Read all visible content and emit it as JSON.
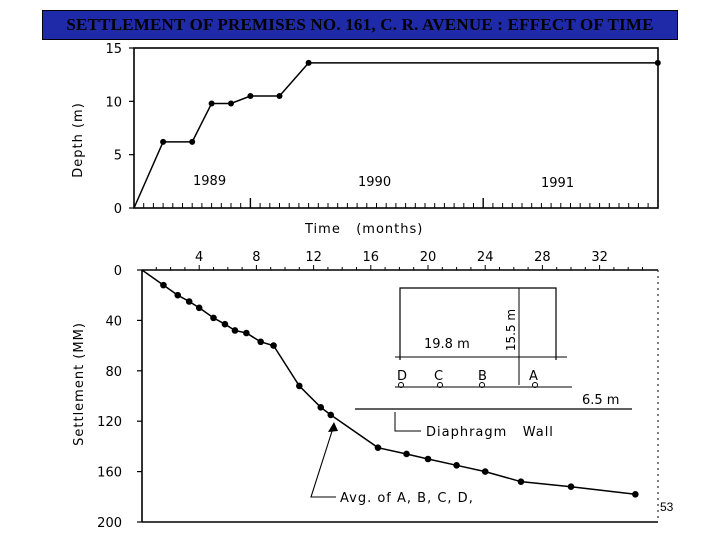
{
  "slide": {
    "title": "SETTLEMENT OF PREMISES NO. 161, C. R. AVENUE : EFFECT OF TIME",
    "page_number": "53",
    "colors": {
      "title_background": "#1f2aa8",
      "ink": "#000000",
      "background": "#ffffff"
    }
  },
  "chart_data": [
    {
      "type": "line",
      "title": "",
      "xlabel": "Time   (months)",
      "ylabel": "Depth (m)",
      "ylim": [
        0,
        15
      ],
      "yticks": [
        "0",
        "5",
        "10",
        "15"
      ],
      "year_labels": [
        "1989",
        "1990",
        "1991"
      ],
      "grid": false,
      "series": [
        {
          "points": [
            [
              0,
              0
            ],
            [
              3,
              6.2
            ],
            [
              6,
              6.2
            ],
            [
              8,
              9.8
            ],
            [
              10,
              9.8
            ],
            [
              12,
              10.5
            ],
            [
              15,
              10.5
            ],
            [
              18,
              13.6
            ],
            [
              54,
              13.6
            ]
          ]
        }
      ]
    },
    {
      "type": "line",
      "title": "",
      "ylabel": "Settlement (MM)",
      "ylim": [
        0,
        200
      ],
      "yticks": [
        "0",
        "40",
        "80",
        "120",
        "160",
        "200"
      ],
      "xticks": [
        "4",
        "8",
        "12",
        "16",
        "20",
        "24",
        "28",
        "32"
      ],
      "grid": false,
      "series": [
        {
          "points": [
            [
              0,
              0
            ],
            [
              1.5,
              12
            ],
            [
              2.5,
              20
            ],
            [
              3.3,
              25
            ],
            [
              4,
              30
            ],
            [
              5,
              38
            ],
            [
              5.8,
              43
            ],
            [
              6.5,
              48
            ],
            [
              7.3,
              50
            ],
            [
              8.3,
              57
            ],
            [
              9.2,
              60
            ],
            [
              11,
              92
            ],
            [
              12.5,
              109
            ],
            [
              13.2,
              115
            ],
            [
              16.5,
              141
            ],
            [
              18.5,
              146
            ],
            [
              20,
              150
            ],
            [
              22,
              155
            ],
            [
              24,
              160
            ],
            [
              26.5,
              168
            ],
            [
              30,
              172
            ],
            [
              34.5,
              178
            ]
          ]
        }
      ],
      "annotations": {
        "avg_label": "Avg. of A, B, C, D,",
        "wall_label": "Diaphragm   Wall",
        "dim_width": "19.8 m",
        "dim_depth": "15.5 m",
        "dim_offset": "6.5 m",
        "point_labels": [
          "D",
          "C",
          "B",
          "A"
        ]
      }
    }
  ]
}
